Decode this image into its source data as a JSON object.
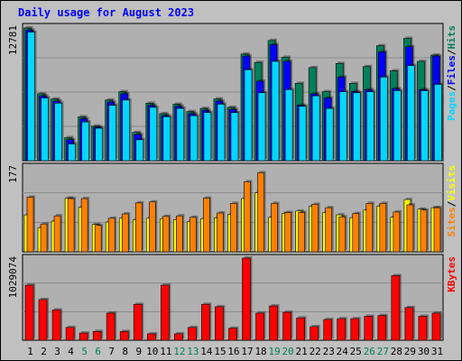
{
  "title": "Daily usage for August 2023",
  "colors": {
    "frame_bg": "#c0c0c0",
    "panel_bg": "#b0b0b0",
    "grid": "#8a8a8a",
    "hits": "#00805c",
    "files": "#0000ff",
    "pages": "#00d6ff",
    "visits": "#ffff00",
    "sites": "#ff8000",
    "kbytes": "#ff0000",
    "weekday_text": "#000000",
    "weekend_text": "#00805c"
  },
  "right_labels": {
    "hits": "Hits",
    "files": "Files",
    "pages": "Pages",
    "sep": "/",
    "visits": "Visits",
    "sites": "Sites",
    "kbytes": "KBytes"
  },
  "chart_data": [
    {
      "type": "bar",
      "panel": "top",
      "categories": [
        "1",
        "2",
        "3",
        "4",
        "5",
        "6",
        "7",
        "8",
        "9",
        "10",
        "11",
        "12",
        "13",
        "14",
        "15",
        "16",
        "17",
        "18",
        "19",
        "20",
        "21",
        "22",
        "23",
        "24",
        "25",
        "26",
        "27",
        "28",
        "29",
        "30",
        "31"
      ],
      "weekend_days": [
        "5",
        "6",
        "12",
        "13",
        "19",
        "20",
        "26",
        "27"
      ],
      "y_tick_label": "12781",
      "ymax": 12781,
      "series": [
        {
          "name": "Hits",
          "values": [
            12700,
            6400,
            5900,
            2200,
            4200,
            3300,
            5800,
            6600,
            2700,
            5500,
            4500,
            5400,
            4700,
            5000,
            5900,
            5100,
            10200,
            9400,
            11500,
            9900,
            7400,
            8900,
            6600,
            9300,
            7400,
            9000,
            11000,
            8600,
            11700,
            9500,
            10100
          ]
        },
        {
          "name": "Files",
          "values": [
            12500,
            6200,
            5700,
            2000,
            4000,
            3200,
            5600,
            6400,
            2500,
            5300,
            4300,
            5200,
            4500,
            4800,
            5700,
            4900,
            10000,
            7600,
            11100,
            9500,
            5300,
            6400,
            6000,
            8000,
            6600,
            6800,
            10400,
            6900,
            10900,
            6800,
            10000
          ]
        },
        {
          "name": "Pages",
          "values": [
            12300,
            6000,
            5500,
            1600,
            3700,
            3100,
            5300,
            5800,
            2000,
            5100,
            4200,
            5000,
            4300,
            4600,
            5400,
            4600,
            8700,
            6500,
            9500,
            6800,
            5200,
            6200,
            5000,
            6600,
            6500,
            6600,
            8000,
            6700,
            9100,
            6700,
            7300
          ]
        }
      ]
    },
    {
      "type": "bar",
      "panel": "middle",
      "categories": [
        "1",
        "2",
        "3",
        "4",
        "5",
        "6",
        "7",
        "8",
        "9",
        "10",
        "11",
        "12",
        "13",
        "14",
        "15",
        "16",
        "17",
        "18",
        "19",
        "20",
        "21",
        "22",
        "23",
        "24",
        "25",
        "26",
        "27",
        "28",
        "29",
        "30",
        "31"
      ],
      "y_tick_label": "177",
      "ymax": 177,
      "series": [
        {
          "name": "Visits",
          "values": [
            77,
            50,
            64,
            112,
            93,
            57,
            62,
            70,
            67,
            70,
            69,
            67,
            63,
            69,
            71,
            78,
            111,
            123,
            72,
            80,
            85,
            95,
            82,
            77,
            71,
            87,
            95,
            72,
            109,
            89,
            92
          ]
        },
        {
          "name": "Sites",
          "values": [
            114,
            58,
            75,
            111,
            111,
            55,
            70,
            79,
            102,
            104,
            74,
            75,
            72,
            112,
            81,
            101,
            146,
            165,
            101,
            82,
            82,
            99,
            92,
            73,
            80,
            101,
            101,
            83,
            98,
            87,
            92
          ]
        }
      ]
    },
    {
      "type": "bar",
      "panel": "bottom",
      "categories": [
        "1",
        "2",
        "3",
        "4",
        "5",
        "6",
        "7",
        "8",
        "9",
        "10",
        "11",
        "12",
        "13",
        "14",
        "15",
        "16",
        "17",
        "18",
        "19",
        "20",
        "21",
        "22",
        "23",
        "24",
        "25",
        "26",
        "27",
        "28",
        "29",
        "30",
        "31"
      ],
      "y_tick_label": "1029074",
      "ymax": 1029074,
      "series": [
        {
          "name": "KBytes",
          "values": [
            690000,
            510000,
            380000,
            160000,
            90000,
            110000,
            340000,
            110000,
            450000,
            80000,
            690000,
            80000,
            160000,
            450000,
            420000,
            150000,
            1029000,
            340000,
            430000,
            350000,
            280000,
            170000,
            260000,
            270000,
            270000,
            300000,
            310000,
            810000,
            410000,
            300000,
            340000
          ]
        }
      ]
    }
  ]
}
